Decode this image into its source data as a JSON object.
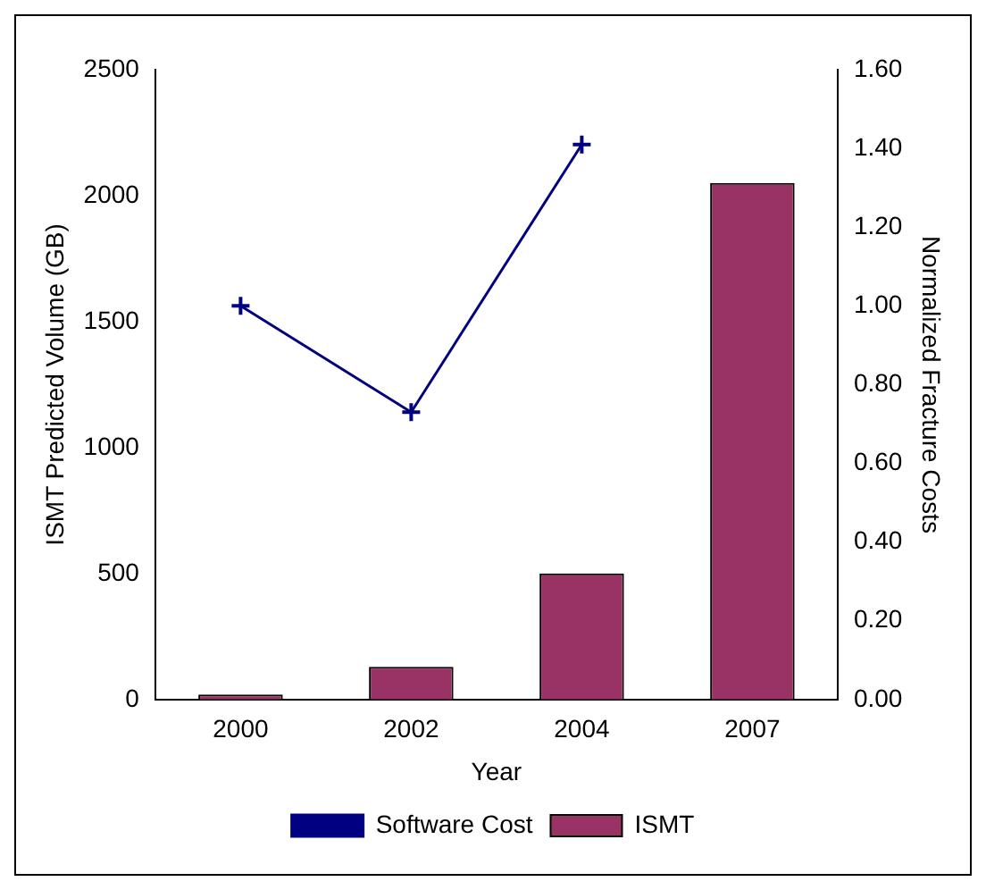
{
  "chart_data": {
    "type": "bar",
    "xlabel": "Year",
    "ylabel": "ISMT Predicted Volume (GB)",
    "y2label": "Normalized Fracture Costs",
    "categories": [
      "2000",
      "2002",
      "2004",
      "2007"
    ],
    "series": [
      {
        "name": "ISMT",
        "color": "#993366",
        "values": [
          20,
          130,
          500,
          2050
        ]
      },
      {
        "name": "Software Cost",
        "type": "line",
        "axis": "y2",
        "color": "#000080",
        "marker": "cross",
        "values": [
          1.0,
          0.73,
          1.41,
          null
        ]
      }
    ],
    "ylim": [
      0,
      2500
    ],
    "yticks": [
      0,
      500,
      1000,
      1500,
      2000,
      2500
    ],
    "y2lim": [
      0,
      1.6
    ],
    "y2ticks": [
      {
        "value": 0,
        "label": "0.00"
      },
      {
        "value": 0.2,
        "label": "0.20"
      },
      {
        "value": 0.4,
        "label": "0.40"
      },
      {
        "value": 0.6,
        "label": "0.60"
      },
      {
        "value": 0.8,
        "label": "0.80"
      },
      {
        "value": 1.0,
        "label": "1.00"
      },
      {
        "value": 1.2,
        "label": "1.20"
      },
      {
        "value": 1.4,
        "label": "1.40"
      },
      {
        "value": 1.6,
        "label": "1.60"
      }
    ],
    "legend": "bottom"
  }
}
